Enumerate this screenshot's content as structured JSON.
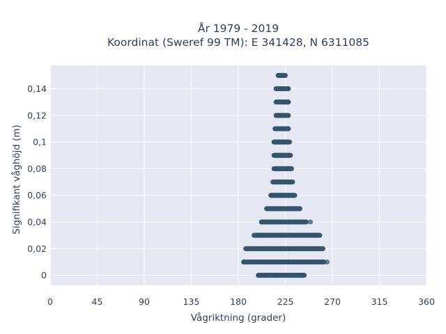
{
  "chart_data": {
    "type": "scatter",
    "title_line1": "År 1979 - 2019",
    "title_line2": "Koordinat (Sweref 99 TM): E 341428, N 6311085",
    "xlabel": "Vågriktning (grader)",
    "ylabel": "Signifikant våghöjd (m)",
    "xlim": [
      0,
      360
    ],
    "ylim": [
      -0.0075,
      0.1575
    ],
    "xticks": [
      0,
      45,
      90,
      135,
      180,
      225,
      270,
      315,
      360
    ],
    "xtick_labels": [
      "0",
      "45",
      "90",
      "135",
      "180",
      "225",
      "270",
      "315",
      "360"
    ],
    "yticks": [
      0,
      0.02,
      0.04,
      0.06,
      0.08,
      0.1,
      0.12,
      0.14
    ],
    "ytick_labels": [
      "0",
      "0,02",
      "0,04",
      "0,06",
      "0,08",
      "0,1",
      "0,12",
      "0,14"
    ],
    "grid": true,
    "colors": {
      "marker": "#34566e",
      "plot_bg": "#e5e8f2",
      "grid": "#ffffff"
    },
    "rows": [
      {
        "y": 0.0,
        "x_min": 199,
        "x_max": 243,
        "outliers": [
          243
        ]
      },
      {
        "y": 0.01,
        "x_min": 185,
        "x_max": 262,
        "outliers": [
          265
        ]
      },
      {
        "y": 0.02,
        "x_min": 187,
        "x_max": 261,
        "outliers": []
      },
      {
        "y": 0.03,
        "x_min": 195,
        "x_max": 258,
        "outliers": []
      },
      {
        "y": 0.04,
        "x_min": 202,
        "x_max": 245,
        "outliers": [
          249
        ]
      },
      {
        "y": 0.05,
        "x_min": 207,
        "x_max": 239,
        "outliers": []
      },
      {
        "y": 0.06,
        "x_min": 211,
        "x_max": 234,
        "outliers": []
      },
      {
        "y": 0.07,
        "x_min": 213,
        "x_max": 232,
        "outliers": []
      },
      {
        "y": 0.08,
        "x_min": 214,
        "x_max": 231,
        "outliers": []
      },
      {
        "y": 0.09,
        "x_min": 214,
        "x_max": 230,
        "outliers": []
      },
      {
        "y": 0.1,
        "x_min": 214,
        "x_max": 229,
        "outliers": []
      },
      {
        "y": 0.11,
        "x_min": 215,
        "x_max": 228,
        "outliers": []
      },
      {
        "y": 0.12,
        "x_min": 216,
        "x_max": 228,
        "outliers": []
      },
      {
        "y": 0.13,
        "x_min": 216,
        "x_max": 228,
        "outliers": []
      },
      {
        "y": 0.14,
        "x_min": 216,
        "x_max": 228,
        "outliers": []
      },
      {
        "y": 0.15,
        "x_min": 218,
        "x_max": 225,
        "outliers": []
      }
    ]
  }
}
